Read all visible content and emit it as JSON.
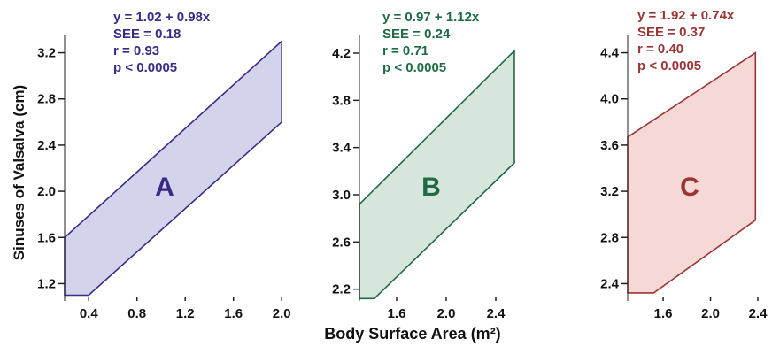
{
  "figure": {
    "xlabel": "Body Surface Area (m²)",
    "ylabel": "Sinuses of Valsalva (cm)"
  },
  "chart_data": [
    {
      "type": "area",
      "panel_letter": "A",
      "color": "#3a2a86",
      "fill": "#d3d3ec",
      "xlim": [
        0.2,
        2.05
      ],
      "ylim": [
        1.05,
        3.35
      ],
      "xticks": [
        "0.4",
        "0.8",
        "1.2",
        "1.6",
        "2.0"
      ],
      "yticks": [
        "1.2",
        "1.6",
        "2.0",
        "2.4",
        "2.8",
        "3.2"
      ],
      "xtick_values": [
        0.4,
        0.8,
        1.2,
        1.6,
        2.0
      ],
      "ytick_values": [
        1.2,
        1.6,
        2.0,
        2.4,
        2.8,
        3.2
      ],
      "band_polygon": [
        [
          0.2,
          1.6
        ],
        [
          2.0,
          3.3
        ],
        [
          2.0,
          2.6
        ],
        [
          0.4,
          1.1
        ],
        [
          0.2,
          1.1
        ]
      ],
      "annotation": [
        "y = 1.02 + 0.98x",
        "SEE = 0.18",
        "r = 0.93",
        "p < 0.0005"
      ]
    },
    {
      "type": "area",
      "panel_letter": "B",
      "color": "#1e6b45",
      "fill": "#d6e6dc",
      "xlim": [
        1.3,
        2.6
      ],
      "ylim": [
        2.1,
        4.35
      ],
      "xticks": [
        "1.6",
        "2.0",
        "2.4"
      ],
      "yticks": [
        "2.2",
        "2.6",
        "3.0",
        "3.4",
        "3.8",
        "4.2"
      ],
      "xtick_values": [
        1.6,
        2.0,
        2.4
      ],
      "ytick_values": [
        2.2,
        2.6,
        3.0,
        3.4,
        3.8,
        4.2
      ],
      "band_polygon": [
        [
          1.3,
          2.92
        ],
        [
          2.55,
          4.22
        ],
        [
          2.55,
          3.27
        ],
        [
          1.42,
          2.12
        ],
        [
          1.3,
          2.12
        ]
      ],
      "annotation": [
        "y = 0.97 + 1.12x",
        "SEE = 0.24",
        "r = 0.71",
        "p < 0.0005"
      ]
    },
    {
      "type": "area",
      "panel_letter": "C",
      "color": "#9b3434",
      "fill": "#f6d8d6",
      "xlim": [
        1.3,
        2.4
      ],
      "ylim": [
        2.25,
        4.55
      ],
      "xticks": [
        "1.6",
        "2.0",
        "2.4"
      ],
      "yticks": [
        "2.4",
        "2.8",
        "3.2",
        "3.6",
        "4.0",
        "4.4"
      ],
      "xtick_values": [
        1.6,
        2.0,
        2.4
      ],
      "ytick_values": [
        2.4,
        2.8,
        3.2,
        3.6,
        4.0,
        4.4
      ],
      "band_polygon": [
        [
          1.3,
          3.67
        ],
        [
          2.38,
          4.4
        ],
        [
          2.38,
          2.95
        ],
        [
          1.52,
          2.32
        ],
        [
          1.3,
          2.32
        ]
      ],
      "annotation": [
        "y = 1.92 + 0.74x",
        "SEE = 0.37",
        "r = 0.40",
        "p < 0.0005"
      ]
    }
  ]
}
